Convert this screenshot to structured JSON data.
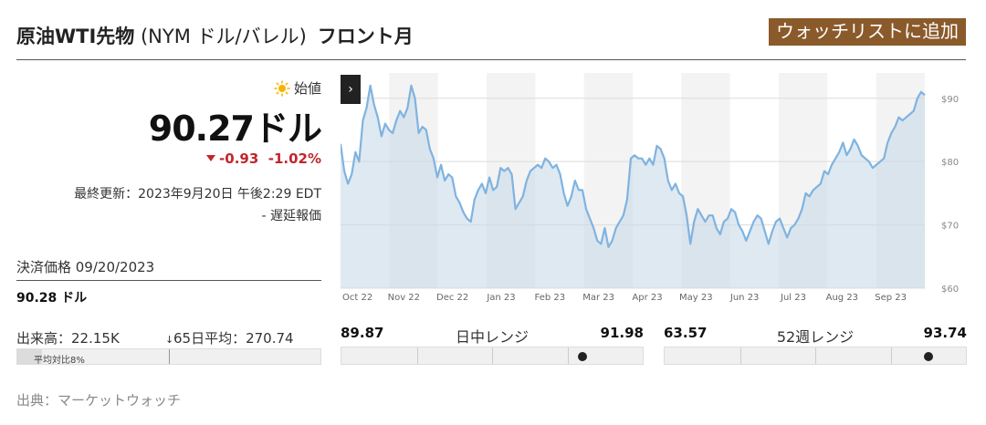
{
  "header": {
    "title_main": "原油WTI先物",
    "title_paren": " (NYM ドル/バレル)",
    "title_front": "フロント月",
    "watchlist_label": "ウォッチリストに追加"
  },
  "quote": {
    "open_label": "始値",
    "price": "90.27ドル",
    "change": "-0.93",
    "change_pct": "-1.02%",
    "updated": "最終更新：2023年9月20日 午後2:29 EDT",
    "delayed": "- 遅延報価",
    "settle_label": "決済価格 09/20/2023",
    "settle_value": "90.28 ドル",
    "colors": {
      "down": "#c0272d",
      "accent": "#8a5a2b"
    }
  },
  "volume": {
    "label": "出来高：22.15K",
    "avg_label": "65日平均：270.74",
    "pct_label": "平均対比8%",
    "pct_value": 0.08
  },
  "chart_data": {
    "type": "area",
    "x_start_label": "Oct 22",
    "month_labels": [
      "Nov 22",
      "Dec 22",
      "Jan 23",
      "Feb 23",
      "Mar 23",
      "Apr 23",
      "May 23",
      "Jun 23",
      "Jul 23",
      "Aug 23",
      "Sep 23"
    ],
    "yticks": [
      "$60",
      "$70",
      "$80",
      "$90"
    ],
    "ylim": [
      60,
      94
    ],
    "values": [
      82.8,
      78.5,
      76.5,
      78,
      81.5,
      80,
      86.5,
      88.5,
      92,
      89,
      87,
      84,
      86,
      85,
      84.5,
      86.5,
      88,
      87,
      88.5,
      92,
      90,
      84.5,
      85.5,
      85,
      82,
      80.5,
      77.5,
      79.5,
      77,
      78,
      77.5,
      74.5,
      73.5,
      72,
      71,
      70.5,
      74,
      75.5,
      76.5,
      75,
      77.5,
      75.5,
      76,
      79,
      78.5,
      79,
      78,
      72.5,
      73.5,
      74.5,
      77,
      78.5,
      79,
      79.5,
      79,
      80.5,
      80,
      79,
      79.5,
      78,
      75,
      73,
      74.5,
      77,
      75.5,
      75.5,
      72.5,
      71,
      69.5,
      67.5,
      67,
      69.5,
      66.5,
      67.5,
      69.5,
      70.5,
      71.5,
      74,
      80.5,
      81,
      80.5,
      80.5,
      79.5,
      80.5,
      79.5,
      82.5,
      82,
      80.5,
      77,
      75.5,
      76.5,
      75,
      74.5,
      71.5,
      67,
      70.5,
      72.5,
      71.5,
      70.5,
      71.5,
      71.5,
      69.5,
      68.5,
      70.5,
      71,
      72.5,
      72,
      70,
      69,
      67.5,
      69,
      70.5,
      71.5,
      71,
      69,
      67,
      69,
      70.5,
      71,
      69.5,
      68,
      69.5,
      70,
      71,
      72.5,
      75,
      74.5,
      75.5,
      76,
      76.5,
      78.5,
      78,
      79.5,
      80.5,
      81.5,
      83,
      81,
      82,
      83.5,
      82.5,
      81,
      80.5,
      80,
      79,
      79.5,
      80,
      80.5,
      83,
      84.5,
      85.5,
      87,
      86.5,
      87,
      87.5,
      88,
      90,
      91,
      90.5
    ]
  },
  "day_range": {
    "title": "日中レンジ",
    "low": "89.87",
    "high": "91.98",
    "position": 0.8
  },
  "week52_range": {
    "title": "52週レンジ",
    "low": "63.57",
    "high": "93.74",
    "position": 0.875
  },
  "source": "出典：マーケットウォッチ"
}
